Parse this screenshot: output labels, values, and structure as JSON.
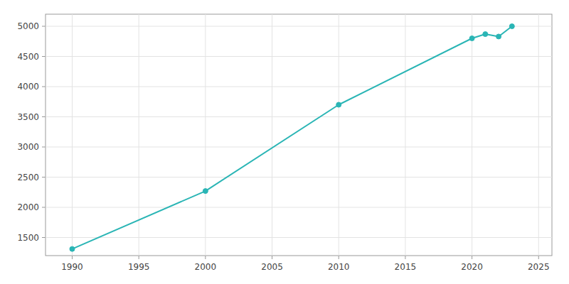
{
  "chart_data": {
    "type": "line",
    "x": [
      1990,
      2000,
      2010,
      2020,
      2021,
      2022,
      2023
    ],
    "values": [
      1310,
      2270,
      3700,
      4800,
      4870,
      4830,
      5000
    ],
    "color": "#2ab5b5",
    "marker": "circle",
    "xlim": [
      1988,
      2026
    ],
    "ylim": [
      1200,
      5200
    ],
    "xticks": [
      1990,
      1995,
      2000,
      2005,
      2010,
      2015,
      2020,
      2025
    ],
    "yticks": [
      1500,
      2000,
      2500,
      3000,
      3500,
      4000,
      4500,
      5000
    ],
    "grid": true
  }
}
